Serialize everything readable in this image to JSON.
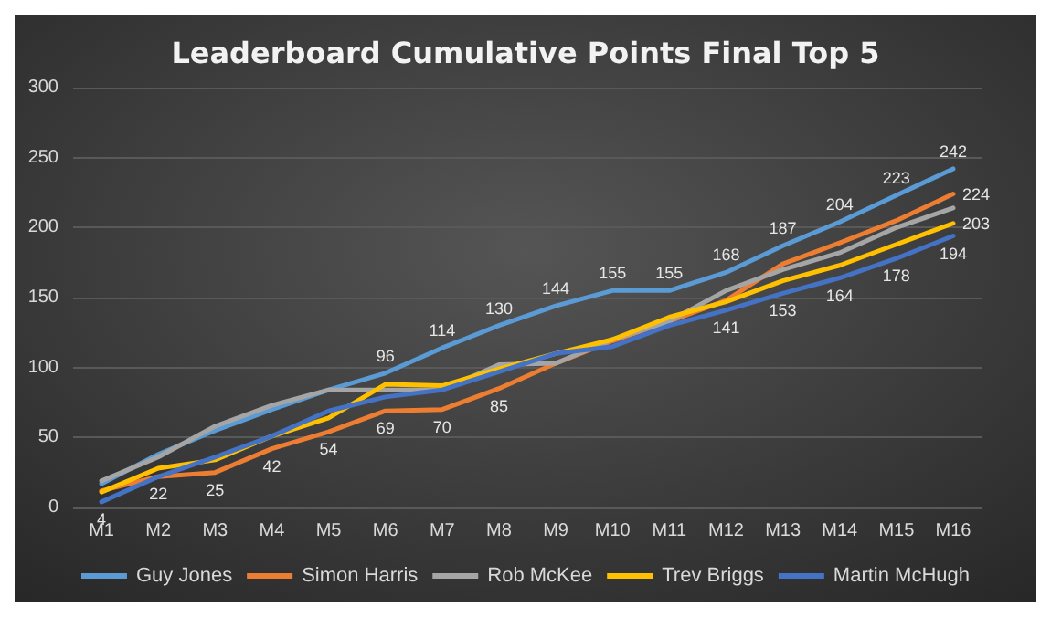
{
  "chart_data": {
    "type": "line",
    "title": "Leaderboard Cumulative Points Final Top 5",
    "categories": [
      "M1",
      "M2",
      "M3",
      "M4",
      "M5",
      "M6",
      "M7",
      "M8",
      "M9",
      "M10",
      "M11",
      "M12",
      "M13",
      "M14",
      "M15",
      "M16"
    ],
    "series": [
      {
        "name": "Guy Jones",
        "color": "#5b9bd5",
        "values": [
          17,
          38,
          55,
          70,
          84,
          96,
          114,
          130,
          144,
          155,
          155,
          168,
          187,
          204,
          223,
          242
        ],
        "value_labels": [
          null,
          null,
          null,
          null,
          null,
          "96",
          "114",
          "130",
          "144",
          "155",
          "155",
          "168",
          "187",
          "204",
          "223",
          "242"
        ]
      },
      {
        "name": "Simon Harris",
        "color": "#ed7d31",
        "values": [
          12,
          22,
          25,
          42,
          54,
          69,
          70,
          85,
          103,
          119,
          133,
          148,
          174,
          189,
          205,
          224
        ],
        "value_labels": [
          null,
          "22",
          "25",
          "42",
          "54",
          "69",
          "70",
          "85",
          null,
          null,
          null,
          null,
          null,
          null,
          null,
          "224"
        ]
      },
      {
        "name": "Rob McKee",
        "color": "#a5a5a5",
        "values": [
          19,
          36,
          58,
          73,
          84,
          84,
          84,
          102,
          103,
          120,
          133,
          155,
          170,
          182,
          200,
          214
        ]
      },
      {
        "name": "Trev Briggs",
        "color": "#ffc000",
        "values": [
          11,
          28,
          34,
          51,
          64,
          88,
          87,
          99,
          110,
          120,
          136,
          147,
          162,
          173,
          188,
          203
        ],
        "value_labels": [
          null,
          null,
          null,
          null,
          null,
          null,
          null,
          null,
          null,
          null,
          null,
          null,
          null,
          null,
          null,
          "203"
        ]
      },
      {
        "name": "Martin McHugh",
        "color": "#4472c4",
        "values": [
          4,
          22,
          36,
          51,
          69,
          79,
          84,
          97,
          110,
          115,
          130,
          141,
          153,
          164,
          178,
          194
        ],
        "value_labels": [
          "4",
          null,
          null,
          null,
          null,
          null,
          null,
          null,
          null,
          null,
          null,
          "141",
          "153",
          "164",
          "178",
          "194"
        ]
      }
    ],
    "ylim": [
      0,
      300
    ],
    "yticks": [
      0,
      50,
      100,
      150,
      200,
      250,
      300
    ],
    "grid": "y",
    "legend": "bottom",
    "marker": "none",
    "line_style": "solid"
  }
}
